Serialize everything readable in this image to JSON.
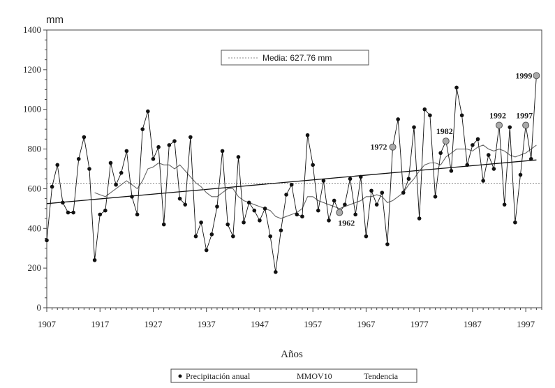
{
  "chart_data": {
    "type": "line",
    "unit_label": "mm",
    "xlabel": "Años",
    "ylabel": "",
    "x_ticks": [
      1907,
      1917,
      1927,
      1937,
      1947,
      1957,
      1967,
      1977,
      1987,
      1997
    ],
    "y_ticks": [
      0,
      200,
      400,
      600,
      800,
      1000,
      1200,
      1400
    ],
    "xlim": [
      1907,
      2000
    ],
    "ylim": [
      0,
      1400
    ],
    "grid": false,
    "legend_position": "bottom",
    "mean": {
      "label": "Media: 627.76 mm",
      "value": 627.76
    },
    "series": [
      {
        "name": "Precipitación anual",
        "x": [
          1907,
          1908,
          1909,
          1910,
          1911,
          1912,
          1913,
          1914,
          1915,
          1916,
          1917,
          1918,
          1919,
          1920,
          1921,
          1922,
          1923,
          1924,
          1925,
          1926,
          1927,
          1928,
          1929,
          1930,
          1931,
          1932,
          1933,
          1934,
          1935,
          1936,
          1937,
          1938,
          1939,
          1940,
          1941,
          1942,
          1943,
          1944,
          1945,
          1946,
          1947,
          1948,
          1949,
          1950,
          1951,
          1952,
          1953,
          1954,
          1955,
          1956,
          1957,
          1958,
          1959,
          1960,
          1961,
          1962,
          1963,
          1964,
          1965,
          1966,
          1967,
          1968,
          1969,
          1970,
          1971,
          1972,
          1973,
          1974,
          1975,
          1976,
          1977,
          1978,
          1979,
          1980,
          1981,
          1982,
          1983,
          1984,
          1985,
          1986,
          1987,
          1988,
          1989,
          1990,
          1991,
          1992,
          1993,
          1994,
          1995,
          1996,
          1997,
          1998,
          1999
        ],
        "values": [
          340,
          610,
          720,
          530,
          480,
          480,
          750,
          860,
          700,
          240,
          470,
          490,
          730,
          620,
          680,
          790,
          560,
          470,
          900,
          990,
          750,
          810,
          420,
          820,
          840,
          550,
          520,
          860,
          360,
          430,
          290,
          370,
          510,
          790,
          420,
          360,
          760,
          430,
          530,
          490,
          440,
          500,
          360,
          180,
          390,
          570,
          620,
          470,
          460,
          870,
          720,
          490,
          640,
          440,
          540,
          480,
          520,
          650,
          470,
          660,
          360,
          590,
          520,
          580,
          320,
          810,
          950,
          580,
          650,
          910,
          450,
          1000,
          970,
          560,
          780,
          840,
          690,
          1110,
          970,
          720,
          820,
          850,
          640,
          770,
          700,
          920,
          520,
          910,
          430,
          670,
          920,
          750,
          1170
        ]
      },
      {
        "name": "MMOV10",
        "x": [
          1916,
          1917,
          1918,
          1919,
          1920,
          1921,
          1922,
          1923,
          1924,
          1925,
          1926,
          1927,
          1928,
          1929,
          1930,
          1931,
          1932,
          1933,
          1934,
          1935,
          1936,
          1937,
          1938,
          1939,
          1940,
          1941,
          1942,
          1943,
          1944,
          1945,
          1946,
          1947,
          1948,
          1949,
          1950,
          1951,
          1952,
          1953,
          1954,
          1955,
          1956,
          1957,
          1958,
          1959,
          1960,
          1961,
          1962,
          1963,
          1964,
          1965,
          1966,
          1967,
          1968,
          1969,
          1970,
          1971,
          1972,
          1973,
          1974,
          1975,
          1976,
          1977,
          1978,
          1979,
          1980,
          1981,
          1982,
          1983,
          1984,
          1985,
          1986,
          1987,
          1988,
          1989,
          1990,
          1991,
          1992,
          1993,
          1994,
          1995,
          1996,
          1997,
          1998,
          1999
        ],
        "values": [
          580,
          570,
          560,
          580,
          600,
          620,
          640,
          620,
          600,
          640,
          700,
          710,
          730,
          720,
          720,
          700,
          720,
          690,
          660,
          630,
          610,
          580,
          560,
          560,
          580,
          600,
          600,
          560,
          540,
          530,
          520,
          510,
          500,
          490,
          460,
          450,
          460,
          470,
          480,
          500,
          560,
          560,
          540,
          530,
          520,
          510,
          500,
          510,
          520,
          530,
          540,
          560,
          560,
          570,
          560,
          530,
          540,
          560,
          580,
          620,
          650,
          690,
          720,
          730,
          730,
          720,
          760,
          780,
          800,
          800,
          800,
          790,
          810,
          820,
          800,
          790,
          800,
          790,
          770,
          760,
          770,
          780,
          800,
          820
        ]
      },
      {
        "name": "Tendencia",
        "x": [
          1907,
          1999
        ],
        "values": [
          525,
          745
        ]
      }
    ],
    "annotations": [
      {
        "label": "1962",
        "x": 1962,
        "y": 480
      },
      {
        "label": "1972",
        "x": 1972,
        "y": 810
      },
      {
        "label": "1982",
        "x": 1982,
        "y": 840
      },
      {
        "label": "1992",
        "x": 1992,
        "y": 920
      },
      {
        "label": "1997",
        "x": 1997,
        "y": 920
      },
      {
        "label": "1999",
        "x": 1999,
        "y": 1170
      }
    ],
    "legend": [
      {
        "label": "Precipitación anual",
        "marker": "dot"
      },
      {
        "label": "MMOV10",
        "marker": "none"
      },
      {
        "label": "Tendencia",
        "marker": "none"
      }
    ],
    "colors": {
      "data_line": "#111111",
      "moving_average": "#666666",
      "trend": "#111111",
      "mean_line": "#888888",
      "highlight_marker": "#aaaaaa"
    }
  }
}
